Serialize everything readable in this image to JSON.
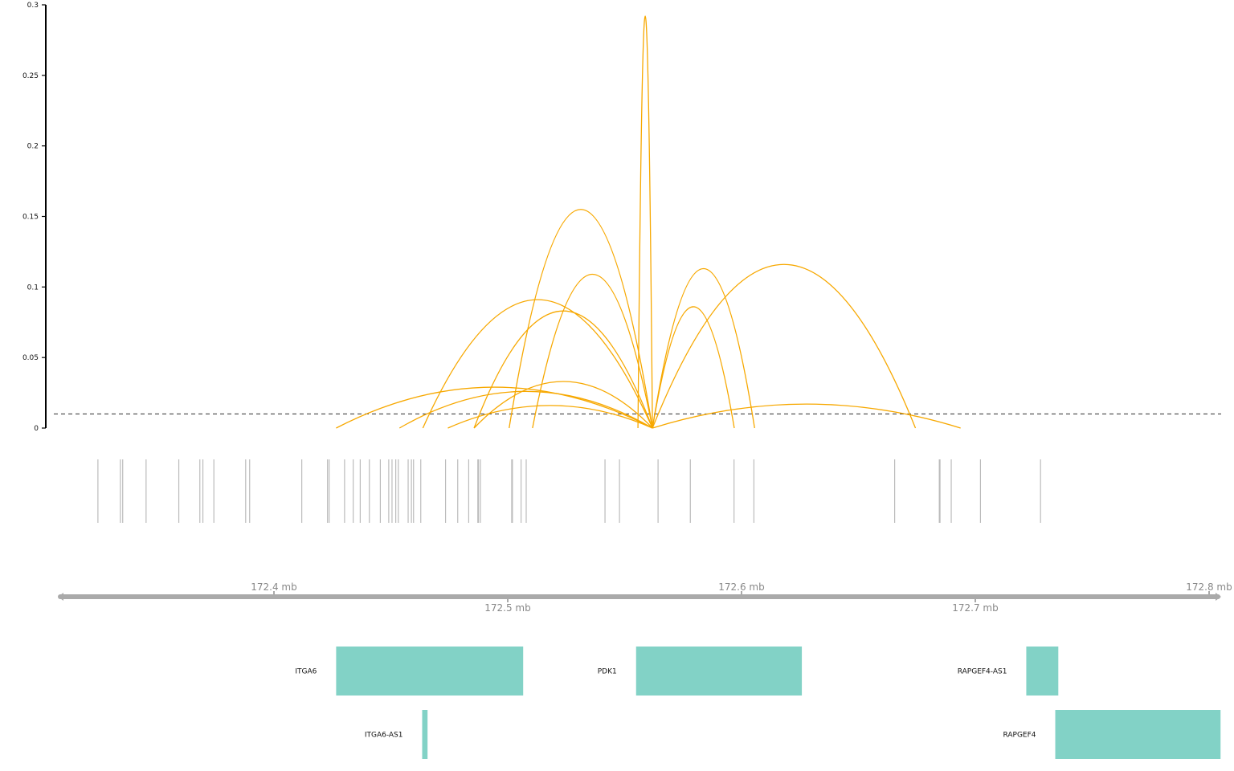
{
  "chart_data": {
    "type": "genome-track-plot",
    "coverage_panel": {
      "y_ticks": [
        {
          "value": 0,
          "label": "0"
        },
        {
          "value": 0.05,
          "label": "0.05"
        },
        {
          "value": 0.1,
          "label": "0.1"
        },
        {
          "value": 0.15,
          "label": "0.15"
        },
        {
          "value": 0.2,
          "label": "0.2"
        },
        {
          "value": 0.25,
          "label": "0.25"
        },
        {
          "value": 0.3,
          "label": "0.3"
        }
      ],
      "ylim": [
        0,
        0.3
      ],
      "threshold": 0.01,
      "arc_color": "#F7A800",
      "arcs": [
        {
          "start": 172.5557,
          "end": 172.5619,
          "height": 0.292
        },
        {
          "start": 172.5006,
          "end": 172.5619,
          "height": 0.155
        },
        {
          "start": 172.5106,
          "end": 172.5619,
          "height": 0.109
        },
        {
          "start": 172.4637,
          "end": 172.5619,
          "height": 0.091
        },
        {
          "start": 172.4856,
          "end": 172.5619,
          "height": 0.083
        },
        {
          "start": 172.4856,
          "end": 172.5619,
          "height": 0.033
        },
        {
          "start": 172.4537,
          "end": 172.5619,
          "height": 0.026
        },
        {
          "start": 172.4266,
          "end": 172.5619,
          "height": 0.029
        },
        {
          "start": 172.4744,
          "end": 172.5619,
          "height": 0.016
        },
        {
          "start": 172.5619,
          "end": 172.6056,
          "height": 0.113
        },
        {
          "start": 172.5619,
          "end": 172.5969,
          "height": 0.086
        },
        {
          "start": 172.5619,
          "end": 172.6744,
          "height": 0.116
        },
        {
          "start": 172.5619,
          "end": 172.6937,
          "height": 0.017
        }
      ]
    },
    "marks_panel": {
      "color": "#bbbbbb",
      "positions": [
        172.3247,
        172.3343,
        172.3353,
        172.3453,
        172.3593,
        172.3683,
        172.3696,
        172.3743,
        172.3879,
        172.3896,
        172.4119,
        172.4229,
        172.4236,
        172.4302,
        172.4339,
        172.4369,
        172.4408,
        172.4455,
        172.4491,
        172.4505,
        172.4521,
        172.4532,
        172.4574,
        172.4588,
        172.4597,
        172.4628,
        172.4734,
        172.4786,
        172.4833,
        172.4872,
        172.4875,
        172.4883,
        172.5017,
        172.502,
        172.5057,
        172.5079,
        172.5416,
        172.5478,
        172.5643,
        172.5781,
        172.5968,
        172.6053,
        172.6655,
        172.6846,
        172.6849,
        172.6897,
        172.7022,
        172.7279
      ]
    },
    "axis": {
      "range": [
        172.3,
        172.8
      ],
      "top_labels": [
        {
          "value": 172.4,
          "label": "172.4 mb"
        },
        {
          "value": 172.6,
          "label": "172.6 mb"
        },
        {
          "value": 172.8,
          "label": "172.8 mb"
        }
      ],
      "bottom_labels": [
        {
          "value": 172.5,
          "label": "172.5 mb"
        },
        {
          "value": 172.7,
          "label": "172.7 mb"
        }
      ],
      "color": "#aaaaaa"
    },
    "genes": {
      "color": "#82D2C6",
      "items": [
        {
          "name": "ITGA6",
          "start": 172.4266,
          "end": 172.5066,
          "row": 0
        },
        {
          "name": "PDK1",
          "start": 172.5549,
          "end": 172.6258,
          "row": 0
        },
        {
          "name": "RAPGEF4-AS1",
          "start": 172.7218,
          "end": 172.7355,
          "row": 0
        },
        {
          "name": "ITGA6-AS1",
          "start": 172.4634,
          "end": 172.4657,
          "row": 1
        },
        {
          "name": "RAPGEF4",
          "start": 172.7342,
          "end": 172.8049,
          "row": 1
        }
      ]
    }
  }
}
